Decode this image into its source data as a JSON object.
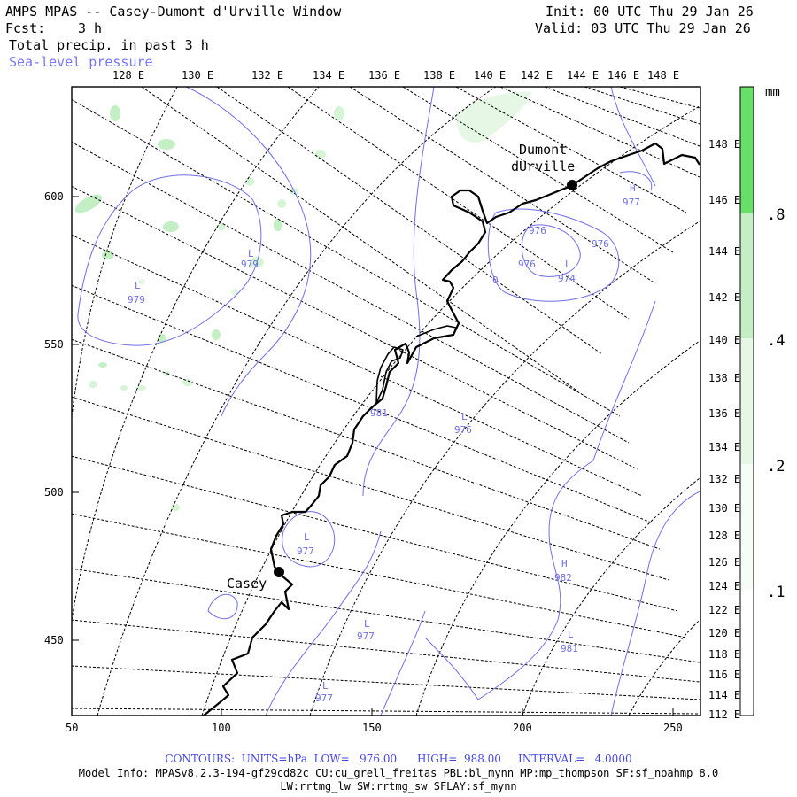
{
  "header": {
    "title": "AMPS MPAS -- Casey-Dumont d'Urville Window",
    "fcst_label": "Fcst:",
    "fcst_value": "3 h",
    "field": "Total precip. in past 3 h",
    "overlay": "Sea-level pressure",
    "init": "Init: 00 UTC Thu 29 Jan 26",
    "valid": "Valid: 03 UTC Thu 29 Jan 26"
  },
  "colors": {
    "contour": "#6f6fe8",
    "coast": "#000000",
    "precip_light": "#e6f7e6",
    "precip_mid": "#c4efc4",
    "precip_high": "#9be89b",
    "precip_max": "#66e066"
  },
  "map": {
    "top_lon_labels": [
      "128 E",
      "130 E",
      "132 E",
      "134 E",
      "136 E",
      "138 E",
      "140 E",
      "142 E",
      "144 E",
      "146 E",
      "148 E"
    ],
    "right_lon_labels": [
      "148 E",
      "146 E",
      "144 E",
      "142 E",
      "140 E",
      "138 E",
      "136 E",
      "134 E",
      "132 E",
      "130 E",
      "128 E",
      "126 E",
      "124 E",
      "122 E",
      "120 E",
      "118 E",
      "116 E",
      "114 E",
      "112 E"
    ],
    "x_ticks": [
      "50",
      "100",
      "150",
      "200",
      "250"
    ],
    "y_ticks": [
      "600",
      "550",
      "500",
      "450"
    ],
    "stations": [
      {
        "name": "Dumont\ndUrville"
      },
      {
        "name": "Casey"
      }
    ],
    "pressure_labels": [
      {
        "type": "L",
        "value": "979"
      },
      {
        "type": "L",
        "value": "979"
      },
      {
        "type": "H",
        "value": "977"
      },
      {
        "type": "",
        "value": "976"
      },
      {
        "type": "",
        "value": "976"
      },
      {
        "type": "",
        "value": "976"
      },
      {
        "type": "L",
        "value": "974"
      },
      {
        "type": "",
        "value": "0"
      },
      {
        "type": "",
        "value": "981"
      },
      {
        "type": "L",
        "value": "976"
      },
      {
        "type": "L",
        "value": "977"
      },
      {
        "type": "H",
        "value": "982"
      },
      {
        "type": "L",
        "value": "977"
      },
      {
        "type": "L",
        "value": "981"
      },
      {
        "type": "L",
        "value": "977"
      }
    ]
  },
  "legend": {
    "unit": "mm",
    "levels": [
      ".8",
      ".4",
      ".2",
      ".1"
    ]
  },
  "footer": {
    "contours": "CONTOURS:  UNITS=hPa  LOW=   976.00      HIGH=  988.00     INTERVAL=   4.0000",
    "model_info": "Model Info: MPASv8.2.3-194-gf29cd82c CU:cu_grell_freitas PBL:bl_mynn MP:mp_thompson SF:sf_noahmp 8.0",
    "model_info2": "LW:rrtmg_lw SW:rrtmg_sw SFLAY:sf_mynn"
  }
}
